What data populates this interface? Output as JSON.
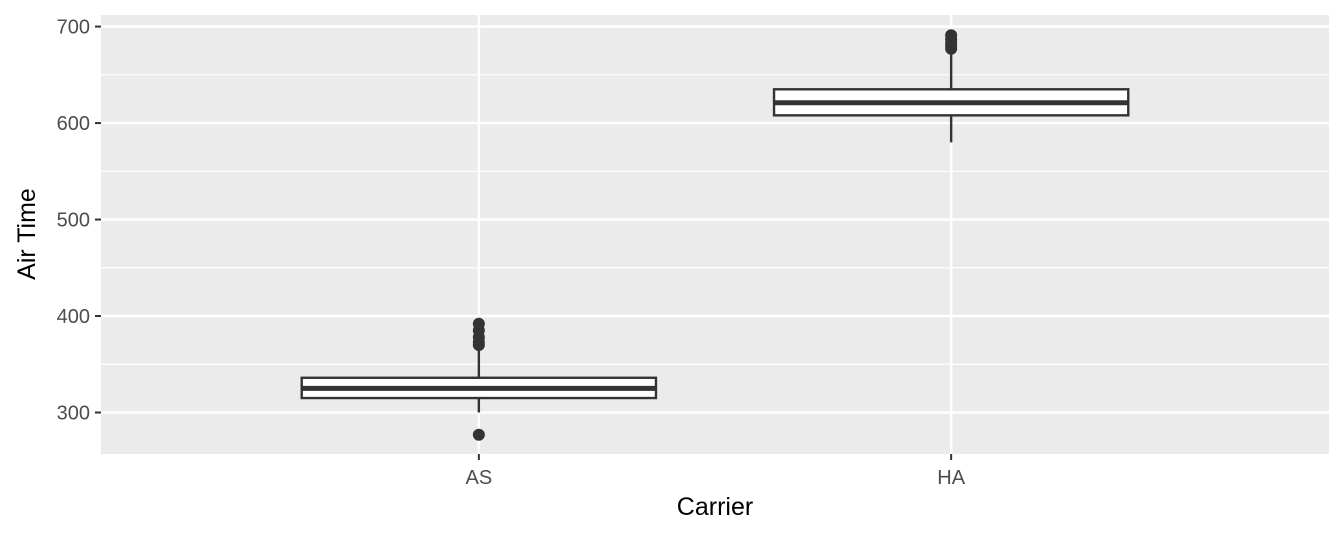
{
  "chart_data": {
    "type": "boxplot",
    "title": "",
    "xlabel": "Carrier",
    "ylabel": "Air Time",
    "ylim": [
      257,
      712
    ],
    "yticks": [
      300,
      400,
      500,
      600,
      700
    ],
    "categories": [
      "AS",
      "HA"
    ],
    "boxes": [
      {
        "category": "AS",
        "lower_whisker": 300,
        "q1": 315,
        "median": 325,
        "q3": 336,
        "upper_whisker": 368,
        "outliers": [
          277,
          370,
          373,
          378,
          385,
          392
        ]
      },
      {
        "category": "HA",
        "lower_whisker": 580,
        "q1": 608,
        "median": 621,
        "q3": 635,
        "upper_whisker": 675,
        "outliers": [
          677,
          680,
          683,
          687,
          691
        ]
      }
    ],
    "grid": true,
    "legend": "none"
  }
}
